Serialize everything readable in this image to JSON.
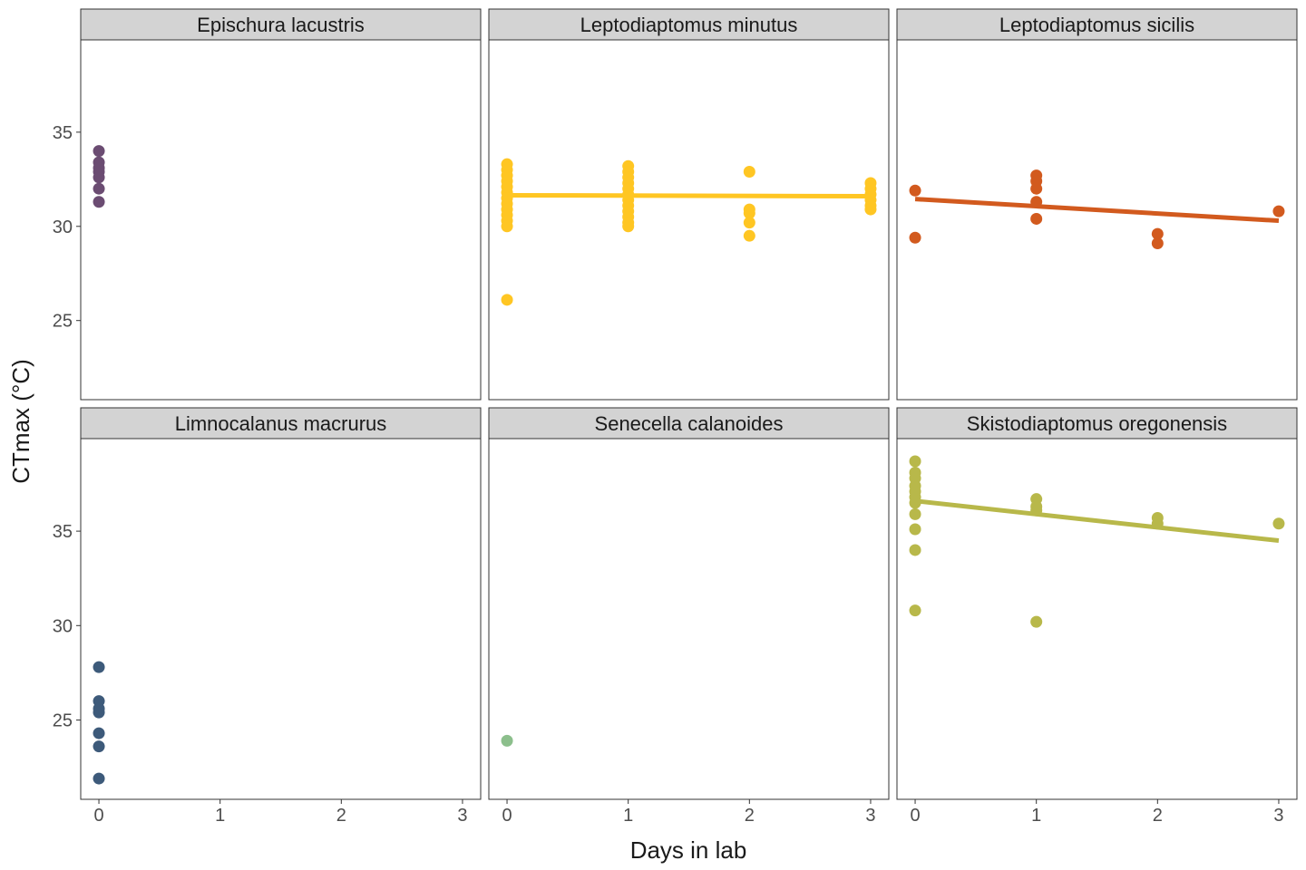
{
  "chart_data": {
    "type": "scatter",
    "layout": "facet_wrap",
    "xlabel": "Days in lab",
    "ylabel": "CTmax (°C)",
    "xlim": [
      -0.15,
      3.15
    ],
    "ylim": [
      20.8,
      39.9
    ],
    "x_ticks": [
      0,
      1,
      2,
      3
    ],
    "y_ticks": [
      25,
      30,
      35
    ],
    "grid": false,
    "panels": [
      {
        "name": "Epischura lacustris",
        "color": "#6b4c72",
        "points": [
          [
            0,
            34.0
          ],
          [
            0,
            33.4
          ],
          [
            0,
            33.1
          ],
          [
            0,
            32.9
          ],
          [
            0,
            32.6
          ],
          [
            0,
            32.0
          ],
          [
            0,
            31.3
          ]
        ],
        "trend": null
      },
      {
        "name": "Leptodiaptomus minutus",
        "color": "#ffc623",
        "points": [
          [
            0,
            33.3
          ],
          [
            0,
            33.0
          ],
          [
            0,
            32.7
          ],
          [
            0,
            32.4
          ],
          [
            0,
            32.1
          ],
          [
            0,
            31.8
          ],
          [
            0,
            31.5
          ],
          [
            0,
            31.2
          ],
          [
            0,
            30.9
          ],
          [
            0,
            30.6
          ],
          [
            0,
            30.3
          ],
          [
            0,
            30.0
          ],
          [
            0,
            26.1
          ],
          [
            1,
            33.2
          ],
          [
            1,
            32.9
          ],
          [
            1,
            32.6
          ],
          [
            1,
            32.3
          ],
          [
            1,
            32.0
          ],
          [
            1,
            31.7
          ],
          [
            1,
            31.4
          ],
          [
            1,
            31.1
          ],
          [
            1,
            30.8
          ],
          [
            1,
            30.5
          ],
          [
            1,
            30.2
          ],
          [
            1,
            30.0
          ],
          [
            2,
            32.9
          ],
          [
            2,
            30.9
          ],
          [
            2,
            30.7
          ],
          [
            2,
            30.2
          ],
          [
            2,
            29.5
          ],
          [
            3,
            32.3
          ],
          [
            3,
            32.0
          ],
          [
            3,
            31.7
          ],
          [
            3,
            31.4
          ],
          [
            3,
            31.1
          ],
          [
            3,
            30.9
          ]
        ],
        "trend": [
          [
            0,
            31.65
          ],
          [
            3,
            31.6
          ]
        ]
      },
      {
        "name": "Leptodiaptomus sicilis",
        "color": "#d25a1e",
        "points": [
          [
            0,
            31.9
          ],
          [
            0,
            29.4
          ],
          [
            1,
            32.7
          ],
          [
            1,
            32.4
          ],
          [
            1,
            32.0
          ],
          [
            1,
            31.3
          ],
          [
            1,
            30.4
          ],
          [
            2,
            29.6
          ],
          [
            2,
            29.1
          ],
          [
            3,
            30.8
          ]
        ],
        "trend": [
          [
            0,
            31.45
          ],
          [
            3,
            30.3
          ]
        ]
      },
      {
        "name": "Limnocalanus macrurus",
        "color": "#3d5a7a",
        "points": [
          [
            0,
            27.8
          ],
          [
            0,
            26.0
          ],
          [
            0,
            25.6
          ],
          [
            0,
            25.4
          ],
          [
            0,
            24.3
          ],
          [
            0,
            23.6
          ],
          [
            0,
            21.9
          ]
        ],
        "trend": null
      },
      {
        "name": "Senecella calanoides",
        "color": "#8cbf8c",
        "points": [
          [
            0,
            23.9
          ]
        ],
        "trend": null
      },
      {
        "name": "Skistodiaptomus oregonensis",
        "color": "#b8b84a",
        "points": [
          [
            0,
            38.7
          ],
          [
            0,
            38.1
          ],
          [
            0,
            37.8
          ],
          [
            0,
            37.4
          ],
          [
            0,
            37.1
          ],
          [
            0,
            36.8
          ],
          [
            0,
            36.5
          ],
          [
            0,
            35.9
          ],
          [
            0,
            35.1
          ],
          [
            0,
            34.0
          ],
          [
            0,
            30.8
          ],
          [
            1,
            36.7
          ],
          [
            1,
            36.3
          ],
          [
            1,
            36.1
          ],
          [
            1,
            30.2
          ],
          [
            2,
            35.7
          ],
          [
            2,
            35.4
          ],
          [
            3,
            35.4
          ]
        ],
        "trend": [
          [
            0,
            36.6
          ],
          [
            3,
            34.5
          ]
        ]
      }
    ]
  }
}
